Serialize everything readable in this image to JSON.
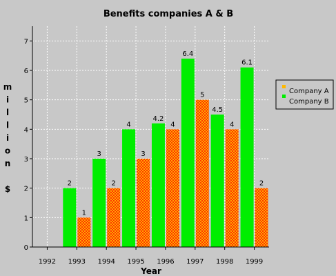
{
  "chart_data": {
    "type": "bar",
    "title": "Benefits companies A & B",
    "xlabel": "Year",
    "ylabel_letters": [
      "m",
      "i",
      "l",
      "l",
      "i",
      "o",
      "n",
      "",
      "$"
    ],
    "x_ticks": [
      "1992",
      "1993",
      "1994",
      "1995",
      "1996",
      "1997",
      "1998",
      "1999"
    ],
    "categories": [
      "1993",
      "1994",
      "1995",
      "1996",
      "1997",
      "1998",
      "1999"
    ],
    "y_ticks": [
      "0",
      "1",
      "2",
      "3",
      "4",
      "5",
      "6",
      "7"
    ],
    "ylim": [
      0,
      7.5
    ],
    "grid": true,
    "legend_position": "right",
    "series": [
      {
        "name": "Company A",
        "color": "#ffb800",
        "pattern_colors": [
          "#ff3300",
          "#ffd000"
        ],
        "values": [
          1,
          2,
          3,
          4,
          5,
          4,
          2
        ],
        "labels": [
          "1",
          "2",
          "3",
          "4",
          "5",
          "4",
          "2"
        ]
      },
      {
        "name": "Company B",
        "color": "#00ee00",
        "values": [
          2,
          3,
          4,
          4.2,
          6.4,
          4.5,
          6.1
        ],
        "labels": [
          "2",
          "3",
          "4",
          "4.2",
          "6.4",
          "4.5",
          "6.1"
        ]
      }
    ]
  }
}
